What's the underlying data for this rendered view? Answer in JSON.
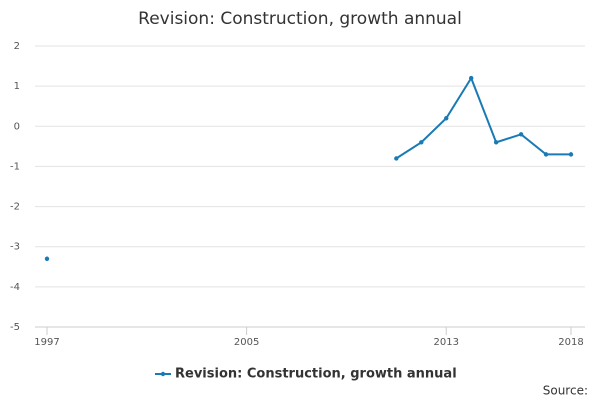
{
  "chart_data": {
    "type": "line",
    "title": "Revision: Construction, growth annual",
    "x": [
      1997,
      1998,
      1999,
      2000,
      2001,
      2002,
      2003,
      2004,
      2005,
      2006,
      2007,
      2008,
      2009,
      2010,
      2011,
      2012,
      2013,
      2014,
      2015,
      2016,
      2017,
      2018
    ],
    "series": [
      {
        "name": "Revision: Construction, growth annual",
        "color": "#1a7ab5",
        "values": [
          -3.3,
          null,
          null,
          null,
          null,
          null,
          null,
          null,
          null,
          null,
          null,
          null,
          null,
          null,
          -0.8,
          -0.4,
          0.2,
          1.2,
          -0.4,
          -0.2,
          -0.7,
          -0.7
        ]
      }
    ],
    "xlim": [
      1997,
      2018
    ],
    "xticks": [
      1997,
      2005,
      2013,
      2018
    ],
    "ylim": [
      -5,
      2
    ],
    "yticks": [
      -5,
      -4,
      -3,
      -2,
      -1,
      0,
      1,
      2
    ],
    "grid": true,
    "legend": "bottom",
    "source": "Source:"
  }
}
